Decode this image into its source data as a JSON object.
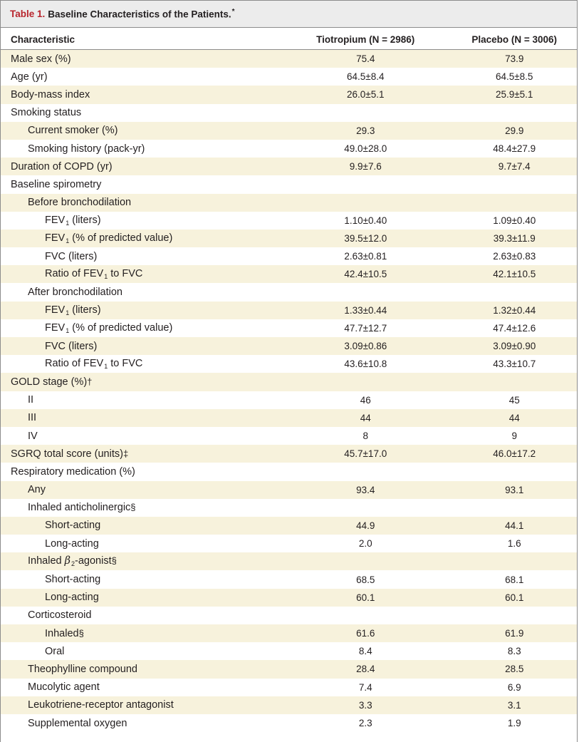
{
  "title": {
    "label": "Table 1.",
    "text": "Baseline Characteristics of the Patients.",
    "symbol": "*"
  },
  "columns": [
    "Characteristic",
    "Tiotropium (N = 2986)",
    "Placebo (N = 3006)"
  ],
  "rows": [
    {
      "label": "Male sex (%)",
      "level": 0,
      "tio": "75.4",
      "pla": "73.9"
    },
    {
      "label": "Age (yr)",
      "level": 0,
      "tio": "64.5±8.4",
      "pla": "64.5±8.5"
    },
    {
      "label": "Body-mass index",
      "level": 0,
      "tio": "26.0±5.1",
      "pla": "25.9±5.1"
    },
    {
      "label": "Smoking status",
      "level": 0,
      "tio": "",
      "pla": ""
    },
    {
      "label": "Current smoker (%)",
      "level": 1,
      "tio": "29.3",
      "pla": "29.9"
    },
    {
      "label": "Smoking history (pack-yr)",
      "level": 1,
      "tio": "49.0±28.0",
      "pla": "48.4±27.9"
    },
    {
      "label": "Duration of COPD (yr)",
      "level": 0,
      "tio": "9.9±7.6",
      "pla": "9.7±7.4"
    },
    {
      "label": "Baseline spirometry",
      "level": 0,
      "tio": "",
      "pla": ""
    },
    {
      "label": "Before bronchodilation",
      "level": 1,
      "tio": "",
      "pla": ""
    },
    {
      "label": "FEV",
      "sub": "1",
      "rest": " (liters)",
      "level": 2,
      "tio": "1.10±0.40",
      "pla": "1.09±0.40"
    },
    {
      "label": "FEV",
      "sub": "1",
      "rest": " (% of predicted value)",
      "level": 2,
      "tio": "39.5±12.0",
      "pla": "39.3±11.9"
    },
    {
      "label": "FVC (liters)",
      "level": 2,
      "tio": "2.63±0.81",
      "pla": "2.63±0.83"
    },
    {
      "label": "Ratio of FEV",
      "sub": "1",
      "rest": " to FVC",
      "level": 2,
      "tio": "42.4±10.5",
      "pla": "42.1±10.5"
    },
    {
      "label": "After bronchodilation",
      "level": 1,
      "tio": "",
      "pla": ""
    },
    {
      "label": "FEV",
      "sub": "1",
      "rest": " (liters)",
      "level": 2,
      "tio": "1.33±0.44",
      "pla": "1.32±0.44"
    },
    {
      "label": "FEV",
      "sub": "1",
      "rest": " (% of predicted value)",
      "level": 2,
      "tio": "47.7±12.7",
      "pla": "47.4±12.6"
    },
    {
      "label": "FVC (liters)",
      "level": 2,
      "tio": "3.09±0.86",
      "pla": "3.09±0.90"
    },
    {
      "label": "Ratio of FEV",
      "sub": "1",
      "rest": " to FVC",
      "level": 2,
      "tio": "43.6±10.8",
      "pla": "43.3±10.7"
    },
    {
      "label": "GOLD stage (%)",
      "fn": "†",
      "level": 0,
      "tio": "",
      "pla": ""
    },
    {
      "label": "II",
      "level": 1,
      "tio": "46",
      "pla": "45"
    },
    {
      "label": "III",
      "level": 1,
      "tio": "44",
      "pla": "44"
    },
    {
      "label": "IV",
      "level": 1,
      "tio": "8",
      "pla": "9"
    },
    {
      "label": "SGRQ total score (units)",
      "fn": "‡",
      "level": 0,
      "tio": "45.7±17.0",
      "pla": "46.0±17.2"
    },
    {
      "label": "Respiratory medication (%)",
      "level": 0,
      "tio": "",
      "pla": ""
    },
    {
      "label": "Any",
      "level": 1,
      "tio": "93.4",
      "pla": "93.1"
    },
    {
      "label": "Inhaled anticholinergic",
      "fn": "§",
      "level": 1,
      "tio": "",
      "pla": ""
    },
    {
      "label": "Short-acting",
      "level": 2,
      "tio": "44.9",
      "pla": "44.1"
    },
    {
      "label": "Long-acting",
      "level": 2,
      "tio": "2.0",
      "pla": "1.6"
    },
    {
      "label": "Inhaled ",
      "beta": "β",
      "sub": "2",
      "rest": "-agonist",
      "fn": "§",
      "level": 1,
      "tio": "",
      "pla": ""
    },
    {
      "label": "Short-acting",
      "level": 2,
      "tio": "68.5",
      "pla": "68.1"
    },
    {
      "label": "Long-acting",
      "level": 2,
      "tio": "60.1",
      "pla": "60.1"
    },
    {
      "label": "Corticosteroid",
      "level": 1,
      "tio": "",
      "pla": ""
    },
    {
      "label": "Inhaled",
      "fn": "§",
      "level": 2,
      "tio": "61.6",
      "pla": "61.9"
    },
    {
      "label": "Oral",
      "level": 2,
      "tio": "8.4",
      "pla": "8.3"
    },
    {
      "label": "Theophylline compound",
      "level": 1,
      "tio": "28.4",
      "pla": "28.5"
    },
    {
      "label": "Mucolytic agent",
      "level": 1,
      "tio": "7.4",
      "pla": "6.9"
    },
    {
      "label": "Leukotriene-receptor antagonist",
      "level": 1,
      "tio": "3.3",
      "pla": "3.1"
    },
    {
      "label": "Supplemental oxygen",
      "level": 1,
      "tio": "2.3",
      "pla": "1.9"
    }
  ]
}
